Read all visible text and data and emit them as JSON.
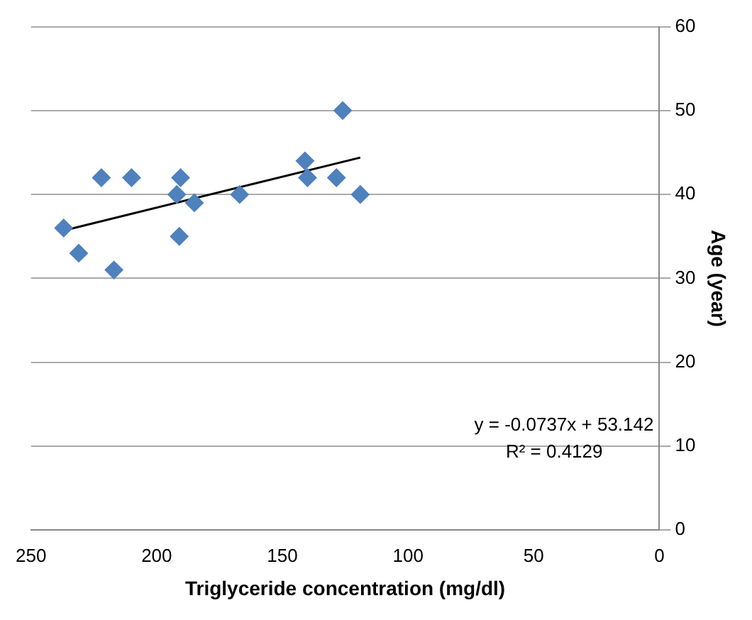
{
  "chart_data": {
    "type": "scatter",
    "xlabel": "Triglyceride concentration (mg/dl)",
    "ylabel": "Age (year)",
    "xlim": [
      250,
      0
    ],
    "xticks": [
      250,
      200,
      150,
      100,
      50,
      0
    ],
    "ylim": [
      0,
      60
    ],
    "yticks": [
      0,
      10,
      20,
      30,
      40,
      50,
      60
    ],
    "grid": "y",
    "marker": "diamond",
    "legend": false,
    "series": [
      {
        "color": "#4f81bd",
        "x": [
          237,
          231,
          217,
          222,
          210,
          190.5,
          192,
          185,
          191,
          167,
          141,
          140,
          128.5,
          126,
          119
        ],
        "values": [
          36,
          33,
          31,
          42,
          42,
          42,
          40,
          39,
          35,
          40,
          44,
          42,
          42,
          50,
          40
        ]
      },
      {
        "type": "line",
        "color": "#000000",
        "x": [
          237,
          119
        ],
        "values": [
          35.7,
          44.4
        ],
        "marker": "none"
      }
    ],
    "annotations": [
      "y = -0.0737x + 53.142",
      "R² = 0.4129"
    ]
  }
}
